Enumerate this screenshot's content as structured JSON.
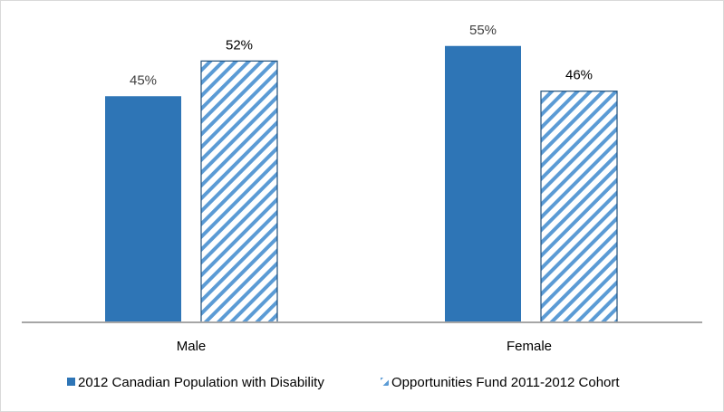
{
  "chart_data": {
    "type": "bar",
    "title": "",
    "xlabel": "",
    "ylabel": "",
    "categories": [
      "Male",
      "Female"
    ],
    "series": [
      {
        "name": "2012 Canadian Population with Disability",
        "values": [
          45,
          55
        ],
        "labels": [
          "45%",
          "55%"
        ],
        "color": "#2e75b6",
        "pattern": "solid"
      },
      {
        "name": "Opportunities Fund 2011-2012 Cohort",
        "values": [
          52,
          46
        ],
        "labels": [
          "52%",
          "46%"
        ],
        "color": "#5b9bd5",
        "pattern": "diagonal-stripes"
      }
    ],
    "ylim": [
      0,
      60
    ],
    "grid": false,
    "y_axis_visible": false,
    "legend": "bottom-center",
    "axis_color": "#a6a6a6",
    "border_color": "#d9d9d9"
  }
}
